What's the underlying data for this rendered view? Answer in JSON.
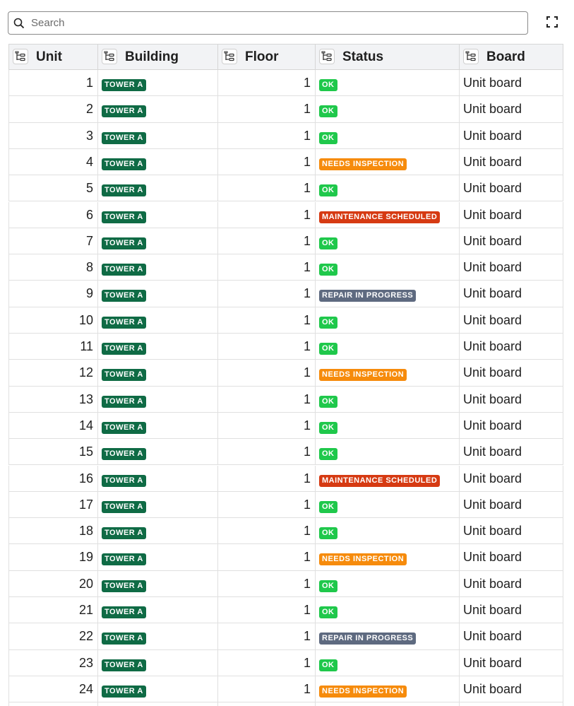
{
  "search": {
    "placeholder": "Search"
  },
  "table": {
    "headers": [
      "Unit",
      "Building",
      "Floor",
      "Status",
      "Board"
    ],
    "building_color": "#0f6b45",
    "status_colors": {
      "OK": "#1fc84b",
      "NEEDS INSPECTION": "#f68b0c",
      "MAINTENANCE SCHEDULED": "#d63a12",
      "REPAIR IN PROGRESS": "#5e6a80"
    },
    "rows": [
      [
        1,
        "TOWER A",
        1,
        "OK",
        "Unit board"
      ],
      [
        2,
        "TOWER A",
        1,
        "OK",
        "Unit board"
      ],
      [
        3,
        "TOWER A",
        1,
        "OK",
        "Unit board"
      ],
      [
        4,
        "TOWER A",
        1,
        "NEEDS INSPECTION",
        "Unit board"
      ],
      [
        5,
        "TOWER A",
        1,
        "OK",
        "Unit board"
      ],
      [
        6,
        "TOWER A",
        1,
        "MAINTENANCE SCHEDULED",
        "Unit board"
      ],
      [
        7,
        "TOWER A",
        1,
        "OK",
        "Unit board"
      ],
      [
        8,
        "TOWER A",
        1,
        "OK",
        "Unit board"
      ],
      [
        9,
        "TOWER A",
        1,
        "REPAIR IN PROGRESS",
        "Unit board"
      ],
      [
        10,
        "TOWER A",
        1,
        "OK",
        "Unit board"
      ],
      [
        11,
        "TOWER A",
        1,
        "OK",
        "Unit board"
      ],
      [
        12,
        "TOWER A",
        1,
        "NEEDS INSPECTION",
        "Unit board"
      ],
      [
        13,
        "TOWER A",
        1,
        "OK",
        "Unit board"
      ],
      [
        14,
        "TOWER A",
        1,
        "OK",
        "Unit board"
      ],
      [
        15,
        "TOWER A",
        1,
        "OK",
        "Unit board"
      ],
      [
        16,
        "TOWER A",
        1,
        "MAINTENANCE SCHEDULED",
        "Unit board"
      ],
      [
        17,
        "TOWER A",
        1,
        "OK",
        "Unit board"
      ],
      [
        18,
        "TOWER A",
        1,
        "OK",
        "Unit board"
      ],
      [
        19,
        "TOWER A",
        1,
        "NEEDS INSPECTION",
        "Unit board"
      ],
      [
        20,
        "TOWER A",
        1,
        "OK",
        "Unit board"
      ],
      [
        21,
        "TOWER A",
        1,
        "OK",
        "Unit board"
      ],
      [
        22,
        "TOWER A",
        1,
        "REPAIR IN PROGRESS",
        "Unit board"
      ],
      [
        23,
        "TOWER A",
        1,
        "OK",
        "Unit board"
      ],
      [
        24,
        "TOWER A",
        1,
        "NEEDS INSPECTION",
        "Unit board"
      ]
    ]
  }
}
